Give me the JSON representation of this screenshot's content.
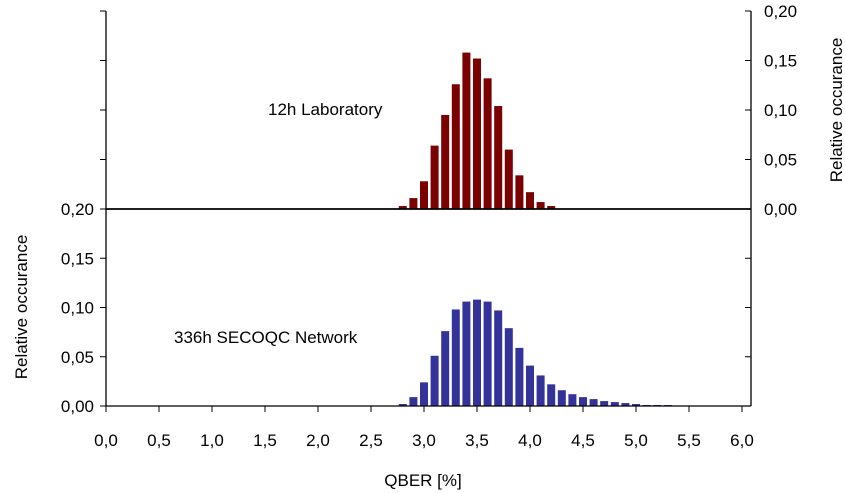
{
  "chart_data": [
    {
      "type": "bar",
      "annotation": "12h Laboratory",
      "color": "#7b0000",
      "ylabel": "Relative occurance",
      "yaxis_side": "right",
      "ylim": [
        0,
        0.2
      ],
      "yticks": [
        "0,00",
        "0,05",
        "0,10",
        "0,15",
        "0,20"
      ],
      "x": [
        2.8,
        2.9,
        3.0,
        3.1,
        3.2,
        3.3,
        3.4,
        3.5,
        3.6,
        3.7,
        3.8,
        3.9,
        4.0,
        4.1,
        4.2
      ],
      "values": [
        0.003,
        0.011,
        0.028,
        0.064,
        0.095,
        0.126,
        0.158,
        0.152,
        0.132,
        0.104,
        0.06,
        0.034,
        0.017,
        0.007,
        0.003
      ]
    },
    {
      "type": "bar",
      "annotation": "336h SECOQC Network",
      "color": "#333399",
      "ylabel": "Relative occurance",
      "yaxis_side": "left",
      "ylim": [
        0,
        0.2
      ],
      "yticks": [
        "0,00",
        "0,05",
        "0,10",
        "0,15",
        "0,20"
      ],
      "x": [
        2.8,
        2.9,
        3.0,
        3.1,
        3.2,
        3.3,
        3.4,
        3.5,
        3.6,
        3.7,
        3.8,
        3.9,
        4.0,
        4.1,
        4.2,
        4.3,
        4.4,
        4.5,
        4.6,
        4.7,
        4.8,
        4.9,
        5.0,
        5.1,
        5.2,
        5.3
      ],
      "values": [
        0.002,
        0.009,
        0.024,
        0.051,
        0.076,
        0.098,
        0.106,
        0.108,
        0.106,
        0.097,
        0.079,
        0.059,
        0.041,
        0.031,
        0.022,
        0.016,
        0.012,
        0.009,
        0.007,
        0.005,
        0.004,
        0.003,
        0.002,
        0.001,
        0.001,
        0.001
      ]
    }
  ],
  "xaxis": {
    "label": "QBER [%]",
    "xlim": [
      0,
      6
    ],
    "ticks": [
      0,
      0.5,
      1,
      1.5,
      2,
      2.5,
      3,
      3.5,
      4,
      4.5,
      5,
      5.5,
      6
    ],
    "tick_labels": [
      "0,0",
      "0,5",
      "1,0",
      "1,5",
      "2,0",
      "2,5",
      "3,0",
      "3,5",
      "4,0",
      "4,5",
      "5,0",
      "5,5",
      "6,0"
    ]
  }
}
